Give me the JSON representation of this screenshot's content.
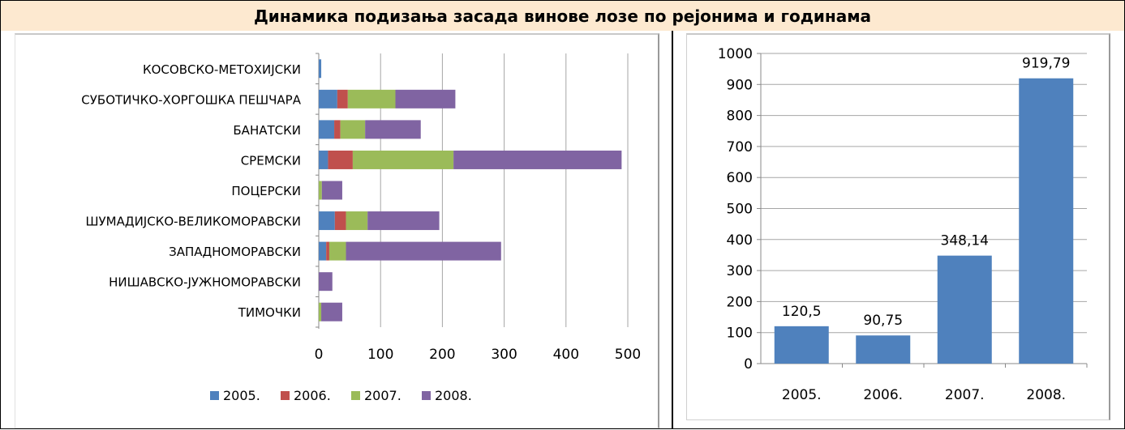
{
  "header": {
    "title": "Динамика подизања засада винове лозе по рејонима и годинама"
  },
  "chart_data": [
    {
      "type": "bar",
      "orientation": "horizontal",
      "stacked": true,
      "categories": [
        "КОСОВСКО-МЕТОХИЈСКИ",
        "СУБОТИЧКО-ХОРГОШКА ПЕШЧАРА",
        "БАНАТСКИ",
        "СРЕМСКИ",
        "ПОЦЕРСКИ",
        "ШУМАДИЈСКО-ВЕЛИКОМОРАВСКИ",
        "ЗАПАДНОМОРАВСКИ",
        "НИШАВСКО-ЈУЖНОМОРАВСКИ",
        "ТИМОЧКИ"
      ],
      "series": [
        {
          "name": "2005.",
          "color": "#4f81bd",
          "values": [
            4,
            30,
            25,
            15,
            0,
            26,
            12,
            0,
            0
          ]
        },
        {
          "name": "2006.",
          "color": "#c0504d",
          "values": [
            0,
            17,
            10,
            40,
            0,
            18,
            5,
            0,
            0
          ]
        },
        {
          "name": "2007.",
          "color": "#9bbb59",
          "values": [
            0,
            77,
            40,
            163,
            5,
            35,
            27,
            0,
            4
          ]
        },
        {
          "name": "2008.",
          "color": "#8064a2",
          "values": [
            0,
            97,
            90,
            272,
            33,
            116,
            251,
            22,
            34
          ]
        }
      ],
      "xlim": [
        0,
        500
      ],
      "xticks": [
        0,
        100,
        200,
        300,
        400,
        500
      ],
      "grid": "vertical",
      "legend": "bottom"
    },
    {
      "type": "bar",
      "categories": [
        "2005.",
        "2006.",
        "2007.",
        "2008."
      ],
      "values": [
        120.5,
        90.75,
        348.14,
        919.79
      ],
      "data_labels": [
        "120,5",
        "90,75",
        "348,14",
        "919,79"
      ],
      "color": "#4f81bd",
      "ylim": [
        0,
        1000
      ],
      "yticks": [
        0,
        100,
        200,
        300,
        400,
        500,
        600,
        700,
        800,
        900,
        1000
      ],
      "grid": "horizontal"
    }
  ]
}
